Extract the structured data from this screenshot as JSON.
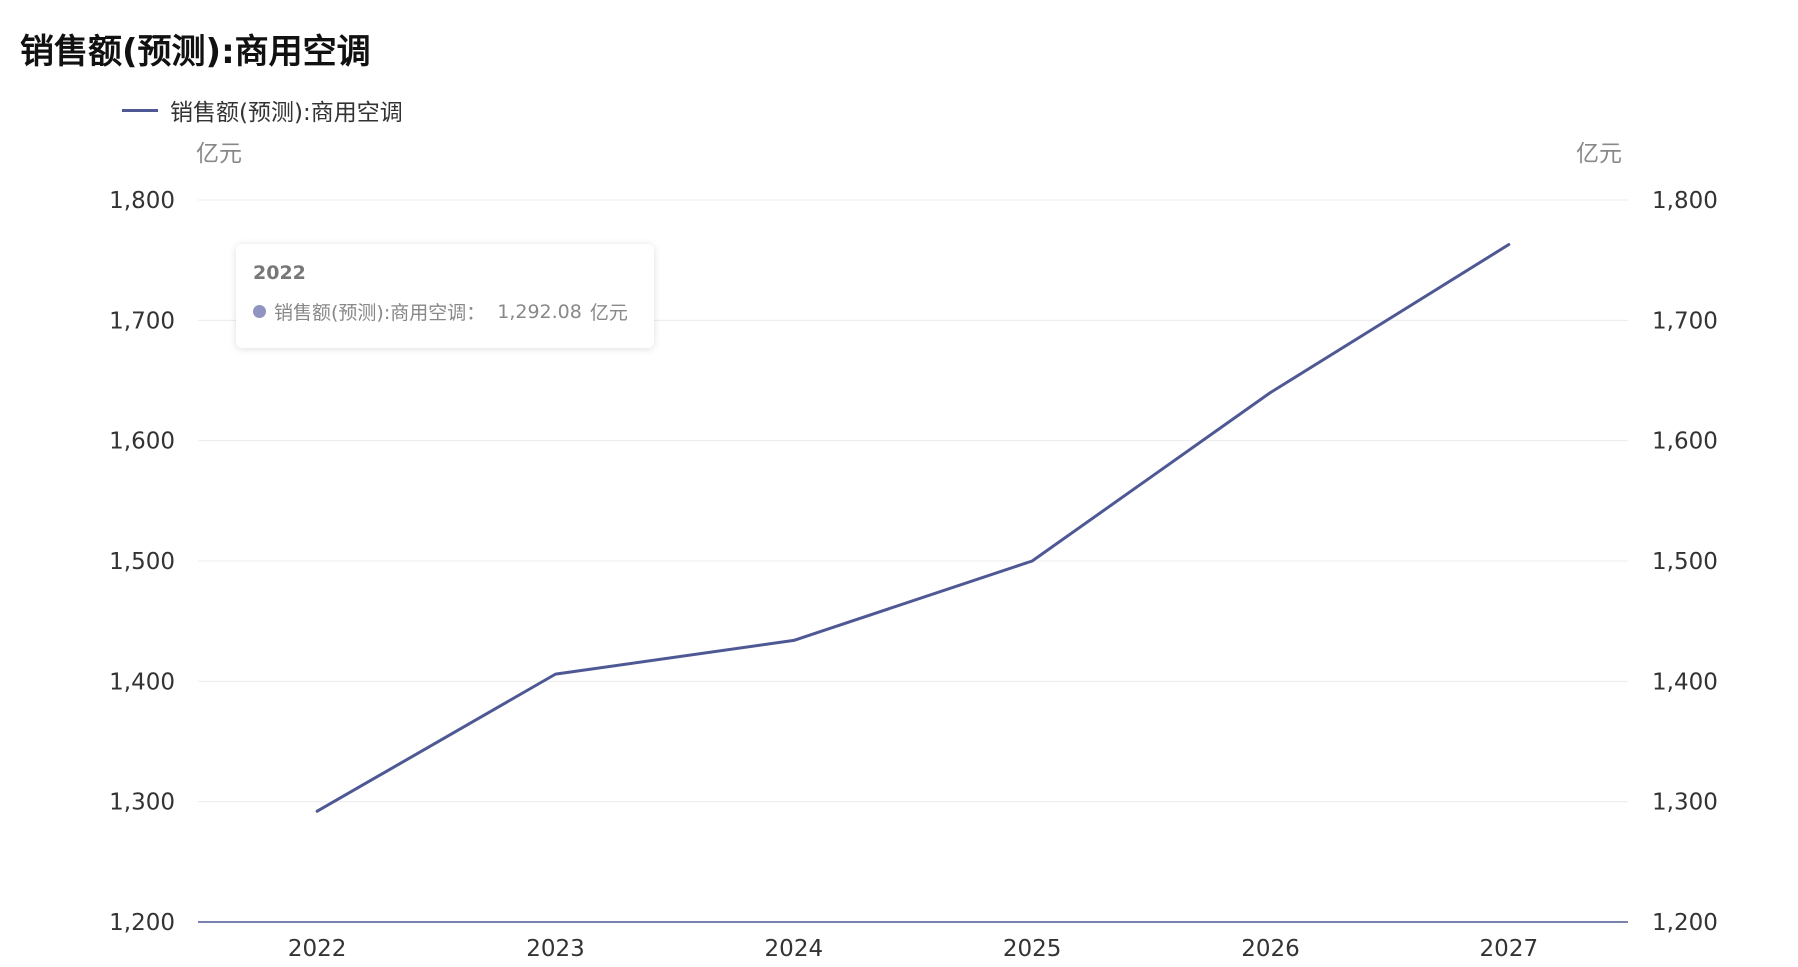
{
  "title": "销售额(预测):商用空调",
  "legend": {
    "label": "销售额(预测):商用空调",
    "color": "#4e5894"
  },
  "units": {
    "left": "亿元",
    "right": "亿元"
  },
  "tooltip": {
    "title": "2022",
    "series": "销售额(预测):商用空调：",
    "value": "1,292.08",
    "unit": "亿元",
    "dot_color": "#8f95c0"
  },
  "chart_data": {
    "type": "line",
    "categories": [
      "2022",
      "2023",
      "2024",
      "2025",
      "2026",
      "2027"
    ],
    "series": [
      {
        "name": "销售额(预测):商用空调",
        "values": [
          1292.08,
          1406,
          1434,
          1500,
          1640,
          1763
        ]
      }
    ],
    "ylim": [
      1200,
      1800
    ],
    "yticks": [
      "1,200",
      "1,300",
      "1,400",
      "1,500",
      "1,600",
      "1,700",
      "1,800"
    ],
    "yunit": "亿元",
    "grid": true,
    "legend_position": "top-left",
    "line_color": "#4e5894"
  }
}
